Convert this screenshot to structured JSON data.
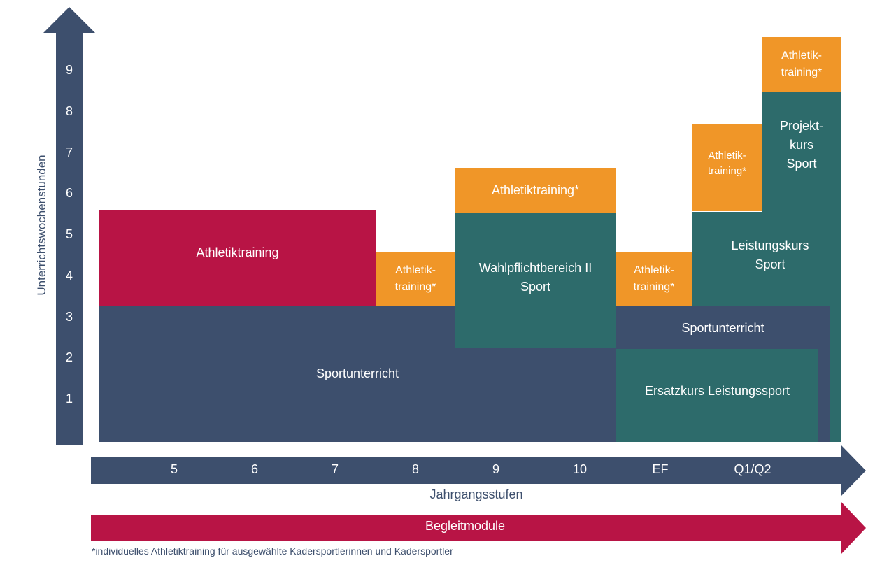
{
  "colors": {
    "navy": "#3d4f6d",
    "teal": "#2d6b6b",
    "orange": "#f09628",
    "crimson": "#b81445"
  },
  "y_axis": {
    "label": "Unterrichtswochenstunden",
    "ticks": [
      "1",
      "2",
      "3",
      "4",
      "5",
      "6",
      "7",
      "8",
      "9"
    ]
  },
  "x_axis": {
    "label": "Jahrgangsstufen",
    "ticks": [
      "5",
      "6",
      "7",
      "8",
      "9",
      "10",
      "EF",
      "Q1/Q2"
    ]
  },
  "blocks": {
    "sportunterricht_main": "Sportunterricht",
    "athletiktraining_5_7": "Athletiktraining",
    "athletiktraining_8": "Athletik-\ntraining*",
    "wahlpflicht": "Wahlpflichtbereich II\nSport",
    "athletiktraining_9_10": "Athletiktraining*",
    "sportunterricht_ef": "Sportunterricht",
    "ersatzkurs": "Ersatzkurs Leistungssport",
    "athletiktraining_ef": "Athletik-\ntraining*",
    "leistungskurs": "Leistungskurs\nSport",
    "athletiktraining_q1": "Athletik-\ntraining*",
    "projektkurs": "Projekt-\nkurs\nSport",
    "athletiktraining_q2": "Athletik-\ntraining*"
  },
  "begleitmodule": "Begleitmodule",
  "footnote": "*individuelles Athletiktraining für ausgewählte Kadersportlerinnen und Kadersportler"
}
